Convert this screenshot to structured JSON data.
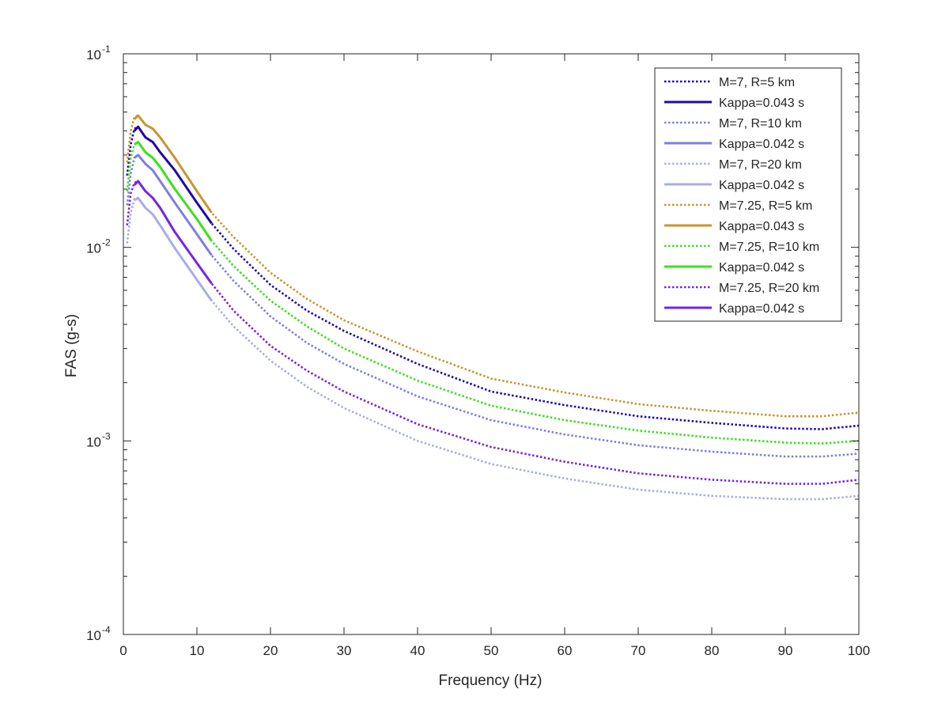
{
  "chart_data": {
    "type": "line",
    "xlabel": "Frequency (Hz)",
    "ylabel": "FAS (g-s)",
    "xlim": [
      0,
      100
    ],
    "ylim": [
      0.0001,
      0.1
    ],
    "yscale": "log",
    "grid": false,
    "legend_position": "top-right",
    "x_ticks": [
      "0",
      "10",
      "20",
      "30",
      "40",
      "50",
      "60",
      "70",
      "80",
      "90",
      "100"
    ],
    "y_ticks": [
      {
        "base": "10",
        "exp": "-4",
        "value": 0.0001
      },
      {
        "base": "10",
        "exp": "-3",
        "value": 0.001
      },
      {
        "base": "10",
        "exp": "-2",
        "value": 0.01
      },
      {
        "base": "10",
        "exp": "-1",
        "value": 0.1
      }
    ],
    "series": [
      {
        "name": "M=7, R=5 km",
        "style": "dotted",
        "color": "#1f0aa8",
        "x": [
          0.5,
          1,
          1.5,
          2,
          3,
          4,
          5,
          7,
          10,
          12,
          15,
          20,
          25,
          30,
          40,
          50,
          60,
          70,
          80,
          90,
          95,
          100
        ],
        "y": [
          0.0235,
          0.034,
          0.041,
          0.042,
          0.037,
          0.035,
          0.031,
          0.025,
          0.017,
          0.0133,
          0.0098,
          0.0064,
          0.0047,
          0.0037,
          0.0025,
          0.0018,
          0.00153,
          0.00134,
          0.00124,
          0.00116,
          0.00115,
          0.0012
        ]
      },
      {
        "name": "Kappa=0.043 s",
        "style": "solid",
        "color": "#1f0aa8",
        "x": [
          1.5,
          2,
          3,
          4,
          5,
          7,
          10,
          12
        ],
        "y": [
          0.04,
          0.042,
          0.037,
          0.035,
          0.031,
          0.025,
          0.017,
          0.0133
        ]
      },
      {
        "name": "M=7, R=10 km",
        "style": "dotted",
        "color": "#7f7fe0",
        "x": [
          0.5,
          1,
          1.5,
          2,
          3,
          4,
          5,
          7,
          10,
          12,
          15,
          20,
          25,
          30,
          40,
          50,
          60,
          70,
          80,
          90,
          95,
          100
        ],
        "y": [
          0.0165,
          0.024,
          0.029,
          0.03,
          0.027,
          0.025,
          0.022,
          0.017,
          0.0117,
          0.0091,
          0.0067,
          0.0044,
          0.0032,
          0.0025,
          0.0017,
          0.00128,
          0.00108,
          0.00095,
          0.00088,
          0.00083,
          0.00083,
          0.00086
        ]
      },
      {
        "name": "Kappa=0.042 s",
        "style": "solid",
        "color": "#7f7fe0",
        "x": [
          1.5,
          2,
          3,
          4,
          5,
          7,
          10,
          12
        ],
        "y": [
          0.029,
          0.03,
          0.027,
          0.025,
          0.022,
          0.017,
          0.0117,
          0.0091
        ]
      },
      {
        "name": "M=7, R=20 km",
        "style": "dotted",
        "color": "#a8aee6",
        "x": [
          0.5,
          1,
          1.5,
          2,
          3,
          4,
          5,
          7,
          10,
          12,
          15,
          20,
          25,
          30,
          40,
          50,
          60,
          70,
          80,
          90,
          95,
          100
        ],
        "y": [
          0.0105,
          0.015,
          0.0178,
          0.018,
          0.016,
          0.0148,
          0.013,
          0.0099,
          0.0068,
          0.0053,
          0.0039,
          0.0026,
          0.0019,
          0.00148,
          0.001,
          0.00076,
          0.00064,
          0.00056,
          0.00052,
          0.0005,
          0.0005,
          0.00052
        ]
      },
      {
        "name": "Kappa=0.042 s",
        "style": "solid",
        "color": "#a8aee6",
        "x": [
          1.5,
          2,
          3,
          4,
          5,
          7,
          10,
          12
        ],
        "y": [
          0.0175,
          0.018,
          0.016,
          0.0148,
          0.013,
          0.0099,
          0.0068,
          0.0053
        ]
      },
      {
        "name": "M=7.25, R=5 km",
        "style": "dotted",
        "color": "#c9952f",
        "x": [
          0.5,
          1,
          1.5,
          2,
          3,
          4,
          5,
          7,
          10,
          12,
          15,
          20,
          25,
          30,
          40,
          50,
          60,
          70,
          80,
          90,
          95,
          100
        ],
        "y": [
          0.0275,
          0.04,
          0.047,
          0.048,
          0.043,
          0.041,
          0.037,
          0.029,
          0.0195,
          0.0151,
          0.0113,
          0.0074,
          0.0054,
          0.0042,
          0.0029,
          0.0021,
          0.00178,
          0.00155,
          0.00143,
          0.00134,
          0.00134,
          0.0014
        ]
      },
      {
        "name": "Kappa=0.043 s",
        "style": "solid",
        "color": "#c9952f",
        "x": [
          1.5,
          2,
          3,
          4,
          5,
          7,
          10,
          12
        ],
        "y": [
          0.046,
          0.048,
          0.043,
          0.041,
          0.037,
          0.029,
          0.0195,
          0.0151
        ]
      },
      {
        "name": "M=7.25, R=10 km",
        "style": "dotted",
        "color": "#3de01c",
        "x": [
          0.5,
          1,
          1.5,
          2,
          3,
          4,
          5,
          7,
          10,
          12,
          15,
          20,
          25,
          30,
          40,
          50,
          60,
          70,
          80,
          90,
          95,
          100
        ],
        "y": [
          0.0195,
          0.029,
          0.034,
          0.035,
          0.031,
          0.029,
          0.026,
          0.02,
          0.014,
          0.0108,
          0.008,
          0.0053,
          0.0039,
          0.003,
          0.00205,
          0.00152,
          0.00128,
          0.00113,
          0.00104,
          0.00098,
          0.00097,
          0.001
        ]
      },
      {
        "name": "Kappa=0.042 s",
        "style": "solid",
        "color": "#3de01c",
        "x": [
          1.5,
          2,
          3,
          4,
          5,
          7,
          10,
          12
        ],
        "y": [
          0.034,
          0.035,
          0.031,
          0.029,
          0.026,
          0.02,
          0.014,
          0.0108
        ]
      },
      {
        "name": "M=7.25, R=20 km",
        "style": "dotted",
        "color": "#7326e6",
        "x": [
          0.5,
          1,
          1.5,
          2,
          3,
          4,
          5,
          7,
          10,
          12,
          15,
          20,
          25,
          30,
          40,
          50,
          60,
          70,
          80,
          90,
          95,
          100
        ],
        "y": [
          0.013,
          0.019,
          0.0215,
          0.022,
          0.0195,
          0.018,
          0.016,
          0.012,
          0.0083,
          0.0065,
          0.0047,
          0.0031,
          0.0023,
          0.0018,
          0.00122,
          0.00093,
          0.00078,
          0.00068,
          0.00063,
          0.0006,
          0.0006,
          0.00063
        ]
      },
      {
        "name": "Kappa=0.042 s",
        "style": "solid",
        "color": "#7326e6",
        "x": [
          1.5,
          2,
          3,
          4,
          5,
          7,
          10,
          12
        ],
        "y": [
          0.021,
          0.022,
          0.0195,
          0.018,
          0.016,
          0.012,
          0.0083,
          0.0065
        ]
      }
    ]
  }
}
